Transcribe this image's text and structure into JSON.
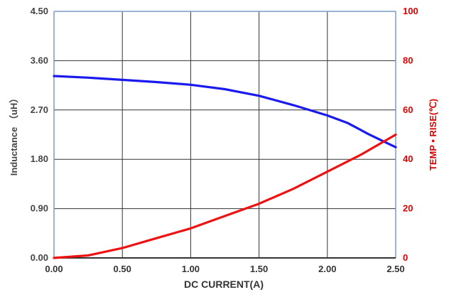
{
  "chart_data": {
    "type": "line",
    "title": "",
    "xlabel": "DC CURRENT(A)",
    "ylabel_left": "Inductance （uH）",
    "ylabel_right": "TEMP • RISE(℃)",
    "xlim": [
      0,
      2.5
    ],
    "ylim_left": [
      0,
      4.5
    ],
    "ylim_right": [
      0,
      100
    ],
    "x_ticks": [
      "0.00",
      "0.50",
      "1.00",
      "1.50",
      "2.00",
      "2.50"
    ],
    "y_left_ticks": [
      "0.00",
      "0.90",
      "1.80",
      "2.70",
      "3.60",
      "4.50"
    ],
    "y_right_ticks": [
      "0",
      "20",
      "40",
      "60",
      "80",
      "100"
    ],
    "grid": true,
    "series": [
      {
        "axis": "left",
        "color": "#1a1aee",
        "x": [
          0.0,
          0.25,
          0.5,
          0.75,
          1.0,
          1.25,
          1.5,
          1.75,
          2.0,
          2.15,
          2.3,
          2.5
        ],
        "y": [
          3.32,
          3.29,
          3.25,
          3.21,
          3.16,
          3.08,
          2.96,
          2.79,
          2.6,
          2.46,
          2.26,
          2.02
        ]
      },
      {
        "axis": "right",
        "color": "#ee1111",
        "x": [
          0.0,
          0.25,
          0.5,
          0.75,
          1.0,
          1.25,
          1.5,
          1.75,
          2.0,
          2.25,
          2.5
        ],
        "y": [
          0,
          1,
          4,
          8,
          12,
          17,
          22,
          28,
          35,
          42,
          50
        ]
      }
    ],
    "colors": {
      "left_axis_text": "#444444",
      "right_axis_text": "#dd0000",
      "grid": "#333333",
      "frame": "#7a9cc8"
    }
  }
}
